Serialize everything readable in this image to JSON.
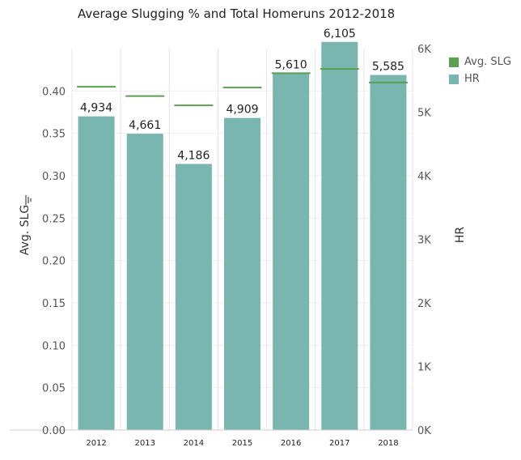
{
  "chart_data": {
    "type": "bar",
    "title": "Average Slugging % and Total Homeruns 2012-2018",
    "categories": [
      "2012",
      "2013",
      "2014",
      "2015",
      "2016",
      "2017",
      "2018"
    ],
    "series": [
      {
        "name": "HR",
        "type": "bar",
        "axis": "right",
        "color": "#79b6b0",
        "values": [
          4934,
          4661,
          4186,
          4909,
          5610,
          6105,
          5585
        ],
        "labels": [
          "4,934",
          "4,661",
          "4,186",
          "4,909",
          "5,610",
          "6,105",
          "5,585"
        ]
      },
      {
        "name": "Avg. SLG",
        "type": "line",
        "axis": "left",
        "color": "#59a14f",
        "values": [
          0.405,
          0.394,
          0.383,
          0.404,
          0.421,
          0.426,
          0.41
        ]
      }
    ],
    "y_left": {
      "label": "Avg. SLG",
      "range": [
        0,
        0.45
      ],
      "ticks": [
        0,
        0.05,
        0.1,
        0.15,
        0.2,
        0.25,
        0.3,
        0.35,
        0.4
      ],
      "tick_labels": [
        "0.00",
        "0.05",
        "0.10",
        "0.15",
        "0.20",
        "0.25",
        "0.30",
        "0.35",
        "0.40"
      ]
    },
    "y_right": {
      "label": "HR",
      "range": [
        0,
        6000
      ],
      "ticks": [
        0,
        1000,
        2000,
        3000,
        4000,
        5000,
        6000
      ],
      "tick_labels": [
        "0K",
        "1K",
        "2K",
        "3K",
        "4K",
        "5K",
        "6K"
      ]
    },
    "grid": true,
    "legend": {
      "position": "top-right",
      "items": [
        {
          "label": "Avg. SLG",
          "color": "#59a14f"
        },
        {
          "label": "HR",
          "color": "#79b6b0"
        }
      ]
    }
  }
}
